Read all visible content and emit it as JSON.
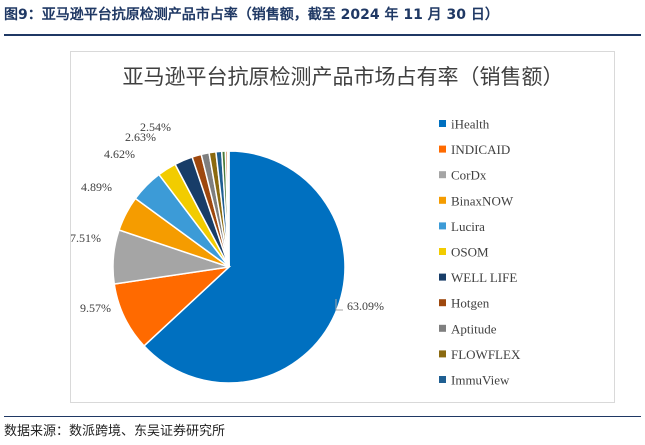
{
  "figure": {
    "caption": "图9：亚马逊平台抗原检测产品市占率（销售额，截至 2024 年 11 月 30 日）",
    "source": "数据来源：数派跨境、东吴证券研究所"
  },
  "chart_data": {
    "type": "pie",
    "title": "亚马逊平台抗原检测产品市场占有率（销售额）",
    "legend_position": "right",
    "slices": [
      {
        "name": "iHealth",
        "value": 63.09,
        "label": "63.09%",
        "color": "#0070c0"
      },
      {
        "name": "INDICAID",
        "value": 9.57,
        "label": "9.57%",
        "color": "#ff6a00"
      },
      {
        "name": "CorDx",
        "value": 7.51,
        "label": "7.51%",
        "color": "#a5a5a5"
      },
      {
        "name": "BinaxNOW",
        "value": 4.89,
        "label": "4.89%",
        "color": "#f59c00"
      },
      {
        "name": "Lucira",
        "value": 4.62,
        "label": "4.62%",
        "color": "#3c9bd7"
      },
      {
        "name": "OSOM",
        "value": 2.63,
        "label": "2.63%",
        "color": "#f2cc00"
      },
      {
        "name": "WELL LIFE",
        "value": 2.54,
        "label": "2.54%",
        "color": "#183d68"
      },
      {
        "name": "Hotgen",
        "value": 1.3,
        "label": "",
        "color": "#9e480e"
      },
      {
        "name": "Aptitude",
        "value": 1.1,
        "label": "",
        "color": "#7f7f7f"
      },
      {
        "name": "FLOWFLEX",
        "value": 0.95,
        "label": "",
        "color": "#8b6a10"
      },
      {
        "name": "ImmuView",
        "value": 0.8,
        "label": "",
        "color": "#1f5f92"
      },
      {
        "value": 0.5,
        "label": "",
        "color": "#4a7a3a"
      },
      {
        "value": 0.3,
        "label": "",
        "color": "#c86428"
      },
      {
        "value": 0.2,
        "label": "",
        "color": "#6f6f6f"
      }
    ]
  }
}
